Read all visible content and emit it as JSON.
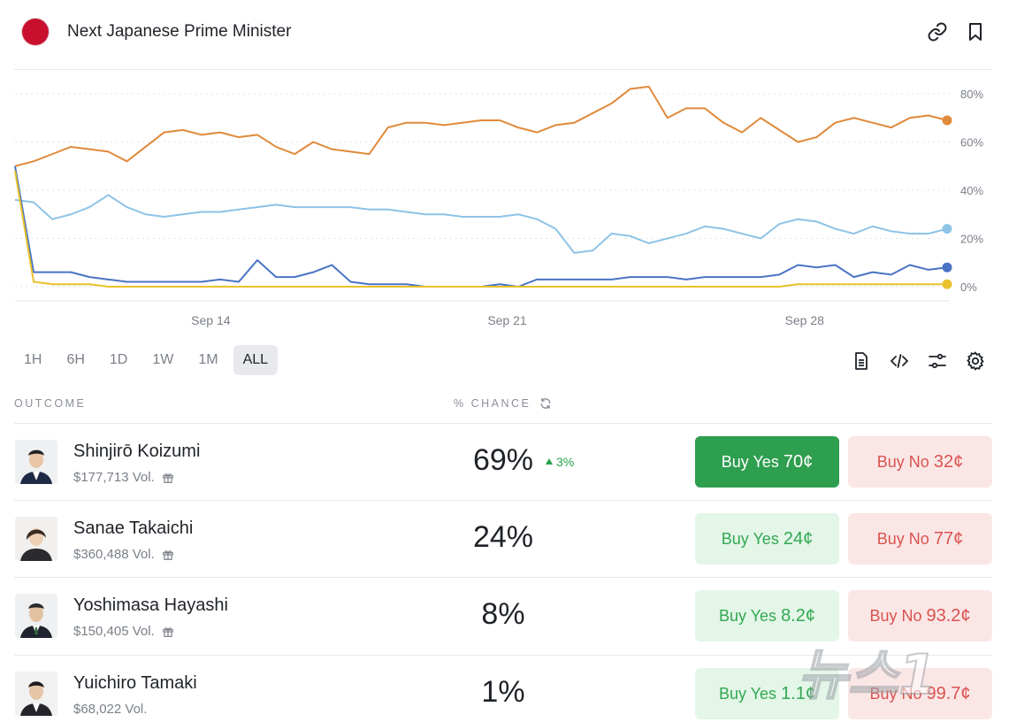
{
  "header": {
    "title": "Next Japanese Prime Minister",
    "flag_color": "#c8102e"
  },
  "chart_data": {
    "type": "line",
    "x_ticks": [
      "Sep 14",
      "Sep 21",
      "Sep 28"
    ],
    "y_ticks": [
      "80%",
      "60%",
      "40%",
      "20%",
      "0%"
    ],
    "ylim": [
      0,
      80
    ],
    "grid": true,
    "series": [
      {
        "name": "Shinjirō Koizumi",
        "color": "#e08a3c",
        "x": [
          0,
          2,
          4,
          6,
          8,
          10,
          12,
          14,
          16,
          18,
          20,
          22,
          24,
          26,
          28,
          30,
          32,
          34,
          36,
          38,
          40,
          42,
          44,
          46,
          48,
          50,
          52,
          54,
          56,
          58,
          60,
          62,
          64,
          66,
          68,
          70,
          72,
          74,
          76,
          78,
          80,
          82,
          84,
          86,
          88,
          90,
          92,
          94,
          96,
          98,
          100
        ],
        "y": [
          50,
          52,
          55,
          58,
          57,
          56,
          52,
          58,
          64,
          65,
          63,
          64,
          62,
          63,
          58,
          55,
          60,
          57,
          56,
          55,
          66,
          68,
          68,
          67,
          68,
          69,
          69,
          66,
          64,
          67,
          68,
          72,
          76,
          82,
          83,
          70,
          74,
          74,
          68,
          64,
          70,
          65,
          60,
          62,
          68,
          70,
          68,
          66,
          70,
          71,
          69
        ]
      },
      {
        "name": "Sanae Takaichi",
        "color": "#8ec3e6",
        "x": [
          0,
          2,
          4,
          6,
          8,
          10,
          12,
          14,
          16,
          18,
          20,
          22,
          24,
          26,
          28,
          30,
          32,
          34,
          36,
          38,
          40,
          42,
          44,
          46,
          48,
          50,
          52,
          54,
          56,
          58,
          60,
          62,
          64,
          66,
          68,
          70,
          72,
          74,
          76,
          78,
          80,
          82,
          84,
          86,
          88,
          90,
          92,
          94,
          96,
          98,
          100
        ],
        "y": [
          36,
          35,
          28,
          30,
          33,
          38,
          33,
          30,
          29,
          30,
          31,
          31,
          32,
          33,
          34,
          33,
          33,
          33,
          33,
          32,
          32,
          31,
          30,
          30,
          29,
          29,
          29,
          30,
          28,
          24,
          14,
          15,
          22,
          21,
          18,
          20,
          22,
          25,
          24,
          22,
          20,
          26,
          28,
          27,
          24,
          22,
          25,
          23,
          22,
          22,
          24
        ]
      },
      {
        "name": "Yoshimasa Hayashi",
        "color": "#4a74c4",
        "x": [
          0,
          2,
          4,
          6,
          8,
          10,
          12,
          14,
          16,
          18,
          20,
          22,
          24,
          26,
          28,
          30,
          32,
          34,
          36,
          38,
          40,
          42,
          44,
          46,
          48,
          50,
          52,
          54,
          56,
          58,
          60,
          62,
          64,
          66,
          68,
          70,
          72,
          74,
          76,
          78,
          80,
          82,
          84,
          86,
          88,
          90,
          92,
          94,
          96,
          98,
          100
        ],
        "y": [
          50,
          6,
          6,
          6,
          4,
          3,
          2,
          2,
          2,
          2,
          2,
          3,
          2,
          11,
          4,
          4,
          6,
          9,
          2,
          1,
          1,
          1,
          0,
          0,
          0,
          0,
          1,
          0,
          3,
          3,
          3,
          3,
          3,
          4,
          4,
          4,
          3,
          4,
          4,
          4,
          4,
          5,
          9,
          8,
          9,
          4,
          6,
          5,
          9,
          7,
          8
        ]
      },
      {
        "name": "Yuichiro Tamaki",
        "color": "#e9c129",
        "x": [
          0,
          2,
          4,
          6,
          8,
          10,
          12,
          14,
          16,
          18,
          20,
          22,
          24,
          26,
          28,
          30,
          32,
          34,
          36,
          38,
          40,
          42,
          44,
          46,
          48,
          50,
          52,
          54,
          56,
          58,
          60,
          62,
          64,
          66,
          68,
          70,
          72,
          74,
          76,
          78,
          80,
          82,
          84,
          86,
          88,
          90,
          92,
          94,
          96,
          98,
          100
        ],
        "y": [
          48,
          2,
          1,
          1,
          1,
          0,
          0,
          0,
          0,
          0,
          0,
          0,
          0,
          0,
          0,
          0,
          0,
          0,
          0,
          0,
          0,
          0,
          0,
          0,
          0,
          0,
          0,
          0,
          0,
          0,
          0,
          0,
          0,
          0,
          0,
          0,
          0,
          0,
          0,
          0,
          0,
          0,
          1,
          1,
          1,
          1,
          1,
          1,
          1,
          1,
          1
        ]
      }
    ]
  },
  "timebar": [
    "1H",
    "6H",
    "1D",
    "1W",
    "1M",
    "ALL"
  ],
  "timebar_active": "ALL",
  "tools": [
    "document-icon",
    "code-icon",
    "sliders-icon",
    "gear-icon"
  ],
  "table": {
    "outcome_header": "OUTCOME",
    "chance_header": "% CHANCE",
    "rows": [
      {
        "name": "Shinjirō Koizumi",
        "volume": "$177,713 Vol.",
        "chance": "69%",
        "delta": "3%",
        "yes_label": "Buy Yes",
        "yes_price": "70¢",
        "no_label": "Buy No",
        "no_price": "32¢"
      },
      {
        "name": "Sanae Takaichi",
        "volume": "$360,488 Vol.",
        "chance": "24%",
        "yes_label": "Buy Yes",
        "yes_price": "24¢",
        "no_label": "Buy No",
        "no_price": "77¢"
      },
      {
        "name": "Yoshimasa Hayashi",
        "volume": "$150,405 Vol.",
        "chance": "8%",
        "yes_label": "Buy Yes",
        "yes_price": "8.2¢",
        "no_label": "Buy No",
        "no_price": "93.2¢"
      },
      {
        "name": "Yuichiro Tamaki",
        "volume": "$68,022 Vol.",
        "chance": "1%",
        "yes_label": "Buy Yes",
        "yes_price": "1.1¢",
        "no_label": "Buy No",
        "no_price": "99.7¢"
      }
    ]
  },
  "watermark": {
    "text": "뉴스1"
  }
}
